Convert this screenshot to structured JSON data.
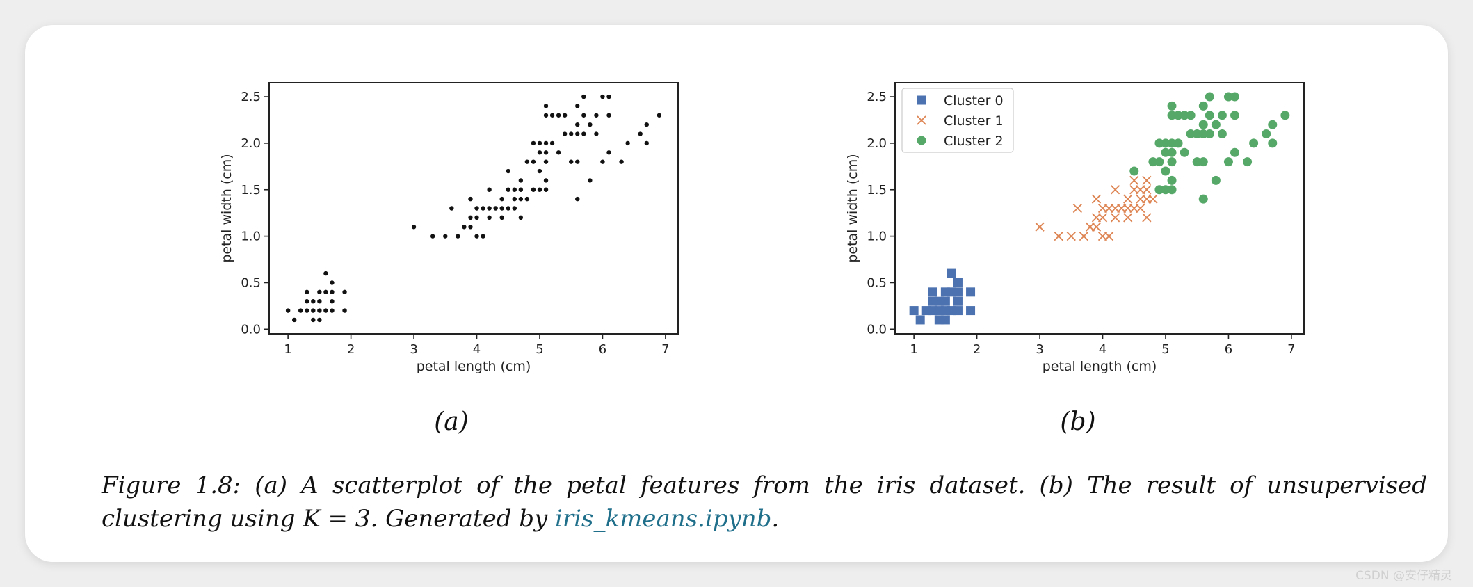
{
  "figure": {
    "panel_a_label": "(a)",
    "panel_b_label": "(b)",
    "caption_line1": "Figure 1.8: (a) A scatterplot of the petal features from the iris dataset. (b) The result of unsupervised",
    "caption_line2_prefix": "clustering using K = 3. Generated by ",
    "caption_link": "iris_kmeans.ipynb",
    "caption_line2_suffix": ".",
    "link_color": "#1f6f8b",
    "watermark": "CSDN @安仔精灵"
  },
  "chart_data": [
    {
      "type": "scatter",
      "title": "",
      "xlabel": "petal length (cm)",
      "ylabel": "petal width (cm)",
      "xlim": [
        0.7,
        7.2
      ],
      "ylim": [
        -0.05,
        2.65
      ],
      "xticks": [
        1,
        2,
        3,
        4,
        5,
        6,
        7
      ],
      "xtick_labels": [
        "1",
        "2",
        "3",
        "4",
        "5",
        "6",
        "7"
      ],
      "yticks": [
        0.0,
        0.5,
        1.0,
        1.5,
        2.0,
        2.5
      ],
      "ytick_labels": [
        "0.0",
        "0.5",
        "1.0",
        "1.5",
        "2.0",
        "2.5"
      ],
      "grid": false,
      "series": [
        {
          "color": "#111111",
          "marker": "dot",
          "points": [
            [
              1.0,
              0.2
            ],
            [
              1.1,
              0.1
            ],
            [
              1.2,
              0.2
            ],
            [
              1.3,
              0.2
            ],
            [
              1.3,
              0.3
            ],
            [
              1.3,
              0.4
            ],
            [
              1.4,
              0.1
            ],
            [
              1.4,
              0.2
            ],
            [
              1.4,
              0.3
            ],
            [
              1.5,
              0.1
            ],
            [
              1.5,
              0.2
            ],
            [
              1.5,
              0.3
            ],
            [
              1.5,
              0.4
            ],
            [
              1.6,
              0.2
            ],
            [
              1.6,
              0.4
            ],
            [
              1.6,
              0.6
            ],
            [
              1.7,
              0.2
            ],
            [
              1.7,
              0.3
            ],
            [
              1.7,
              0.4
            ],
            [
              1.7,
              0.5
            ],
            [
              1.9,
              0.2
            ],
            [
              1.9,
              0.4
            ],
            [
              3.0,
              1.1
            ],
            [
              3.3,
              1.0
            ],
            [
              3.5,
              1.0
            ],
            [
              3.6,
              1.3
            ],
            [
              3.7,
              1.0
            ],
            [
              3.8,
              1.1
            ],
            [
              3.9,
              1.1
            ],
            [
              3.9,
              1.2
            ],
            [
              3.9,
              1.4
            ],
            [
              4.0,
              1.0
            ],
            [
              4.0,
              1.2
            ],
            [
              4.0,
              1.3
            ],
            [
              4.1,
              1.0
            ],
            [
              4.1,
              1.3
            ],
            [
              4.2,
              1.2
            ],
            [
              4.2,
              1.3
            ],
            [
              4.2,
              1.5
            ],
            [
              4.3,
              1.3
            ],
            [
              4.4,
              1.2
            ],
            [
              4.4,
              1.3
            ],
            [
              4.4,
              1.4
            ],
            [
              4.5,
              1.3
            ],
            [
              4.5,
              1.5
            ],
            [
              4.5,
              1.7
            ],
            [
              4.6,
              1.3
            ],
            [
              4.6,
              1.4
            ],
            [
              4.6,
              1.5
            ],
            [
              4.7,
              1.2
            ],
            [
              4.7,
              1.4
            ],
            [
              4.7,
              1.5
            ],
            [
              4.7,
              1.6
            ],
            [
              4.8,
              1.4
            ],
            [
              4.8,
              1.8
            ],
            [
              4.9,
              1.5
            ],
            [
              4.9,
              1.8
            ],
            [
              4.9,
              2.0
            ],
            [
              5.0,
              1.5
            ],
            [
              5.0,
              1.7
            ],
            [
              5.0,
              1.9
            ],
            [
              5.0,
              2.0
            ],
            [
              5.1,
              1.5
            ],
            [
              5.1,
              1.6
            ],
            [
              5.1,
              1.8
            ],
            [
              5.1,
              1.9
            ],
            [
              5.1,
              2.0
            ],
            [
              5.1,
              2.3
            ],
            [
              5.1,
              2.4
            ],
            [
              5.2,
              2.0
            ],
            [
              5.2,
              2.3
            ],
            [
              5.3,
              1.9
            ],
            [
              5.3,
              2.3
            ],
            [
              5.4,
              2.1
            ],
            [
              5.4,
              2.3
            ],
            [
              5.5,
              1.8
            ],
            [
              5.5,
              2.1
            ],
            [
              5.6,
              1.4
            ],
            [
              5.6,
              1.8
            ],
            [
              5.6,
              2.1
            ],
            [
              5.6,
              2.2
            ],
            [
              5.6,
              2.4
            ],
            [
              5.7,
              2.1
            ],
            [
              5.7,
              2.3
            ],
            [
              5.7,
              2.5
            ],
            [
              5.8,
              1.6
            ],
            [
              5.8,
              2.2
            ],
            [
              5.9,
              2.1
            ],
            [
              5.9,
              2.3
            ],
            [
              6.0,
              1.8
            ],
            [
              6.0,
              2.5
            ],
            [
              6.1,
              1.9
            ],
            [
              6.1,
              2.3
            ],
            [
              6.1,
              2.5
            ],
            [
              6.3,
              1.8
            ],
            [
              6.4,
              2.0
            ],
            [
              6.6,
              2.1
            ],
            [
              6.7,
              2.0
            ],
            [
              6.7,
              2.2
            ],
            [
              6.9,
              2.3
            ]
          ]
        }
      ]
    },
    {
      "type": "scatter",
      "title": "",
      "xlabel": "petal length (cm)",
      "ylabel": "petal width (cm)",
      "xlim": [
        0.7,
        7.2
      ],
      "ylim": [
        -0.05,
        2.65
      ],
      "xticks": [
        1,
        2,
        3,
        4,
        5,
        6,
        7
      ],
      "xtick_labels": [
        "1",
        "2",
        "3",
        "4",
        "5",
        "6",
        "7"
      ],
      "yticks": [
        0.0,
        0.5,
        1.0,
        1.5,
        2.0,
        2.5
      ],
      "ytick_labels": [
        "0.0",
        "0.5",
        "1.0",
        "1.5",
        "2.0",
        "2.5"
      ],
      "grid": false,
      "legend": "top-left",
      "series": [
        {
          "name": "Cluster 0",
          "color": "#4c72b0",
          "marker": "square",
          "points": [
            [
              1.0,
              0.2
            ],
            [
              1.1,
              0.1
            ],
            [
              1.2,
              0.2
            ],
            [
              1.3,
              0.2
            ],
            [
              1.3,
              0.3
            ],
            [
              1.3,
              0.4
            ],
            [
              1.4,
              0.1
            ],
            [
              1.4,
              0.2
            ],
            [
              1.4,
              0.3
            ],
            [
              1.5,
              0.1
            ],
            [
              1.5,
              0.2
            ],
            [
              1.5,
              0.3
            ],
            [
              1.5,
              0.4
            ],
            [
              1.6,
              0.2
            ],
            [
              1.6,
              0.4
            ],
            [
              1.6,
              0.6
            ],
            [
              1.7,
              0.2
            ],
            [
              1.7,
              0.3
            ],
            [
              1.7,
              0.4
            ],
            [
              1.7,
              0.5
            ],
            [
              1.9,
              0.2
            ],
            [
              1.9,
              0.4
            ]
          ]
        },
        {
          "name": "Cluster 1",
          "color": "#dd8452",
          "marker": "x",
          "points": [
            [
              3.0,
              1.1
            ],
            [
              3.3,
              1.0
            ],
            [
              3.5,
              1.0
            ],
            [
              3.6,
              1.3
            ],
            [
              3.7,
              1.0
            ],
            [
              3.8,
              1.1
            ],
            [
              3.9,
              1.1
            ],
            [
              3.9,
              1.2
            ],
            [
              3.9,
              1.4
            ],
            [
              4.0,
              1.0
            ],
            [
              4.0,
              1.2
            ],
            [
              4.0,
              1.3
            ],
            [
              4.1,
              1.0
            ],
            [
              4.1,
              1.3
            ],
            [
              4.2,
              1.2
            ],
            [
              4.2,
              1.3
            ],
            [
              4.2,
              1.5
            ],
            [
              4.3,
              1.3
            ],
            [
              4.4,
              1.2
            ],
            [
              4.4,
              1.3
            ],
            [
              4.4,
              1.4
            ],
            [
              4.5,
              1.3
            ],
            [
              4.5,
              1.5
            ],
            [
              4.5,
              1.6
            ],
            [
              4.6,
              1.3
            ],
            [
              4.6,
              1.4
            ],
            [
              4.6,
              1.5
            ],
            [
              4.7,
              1.2
            ],
            [
              4.7,
              1.4
            ],
            [
              4.7,
              1.5
            ],
            [
              4.7,
              1.6
            ],
            [
              4.8,
              1.4
            ]
          ]
        },
        {
          "name": "Cluster 2",
          "color": "#55a868",
          "marker": "circle",
          "points": [
            [
              4.5,
              1.7
            ],
            [
              4.8,
              1.8
            ],
            [
              4.9,
              1.5
            ],
            [
              4.9,
              1.8
            ],
            [
              4.9,
              2.0
            ],
            [
              5.0,
              1.5
            ],
            [
              5.0,
              1.7
            ],
            [
              5.0,
              1.9
            ],
            [
              5.0,
              2.0
            ],
            [
              5.1,
              1.5
            ],
            [
              5.1,
              1.6
            ],
            [
              5.1,
              1.8
            ],
            [
              5.1,
              1.9
            ],
            [
              5.1,
              2.0
            ],
            [
              5.1,
              2.3
            ],
            [
              5.1,
              2.4
            ],
            [
              5.2,
              2.0
            ],
            [
              5.2,
              2.3
            ],
            [
              5.3,
              1.9
            ],
            [
              5.3,
              2.3
            ],
            [
              5.4,
              2.1
            ],
            [
              5.4,
              2.3
            ],
            [
              5.5,
              1.8
            ],
            [
              5.5,
              2.1
            ],
            [
              5.6,
              1.4
            ],
            [
              5.6,
              1.8
            ],
            [
              5.6,
              2.1
            ],
            [
              5.6,
              2.2
            ],
            [
              5.6,
              2.4
            ],
            [
              5.7,
              2.1
            ],
            [
              5.7,
              2.3
            ],
            [
              5.7,
              2.5
            ],
            [
              5.8,
              1.6
            ],
            [
              5.8,
              2.2
            ],
            [
              5.9,
              2.1
            ],
            [
              5.9,
              2.3
            ],
            [
              6.0,
              1.8
            ],
            [
              6.0,
              2.5
            ],
            [
              6.1,
              1.9
            ],
            [
              6.1,
              2.3
            ],
            [
              6.1,
              2.5
            ],
            [
              6.3,
              1.8
            ],
            [
              6.4,
              2.0
            ],
            [
              6.6,
              2.1
            ],
            [
              6.7,
              2.0
            ],
            [
              6.7,
              2.2
            ],
            [
              6.9,
              2.3
            ]
          ]
        }
      ]
    }
  ]
}
